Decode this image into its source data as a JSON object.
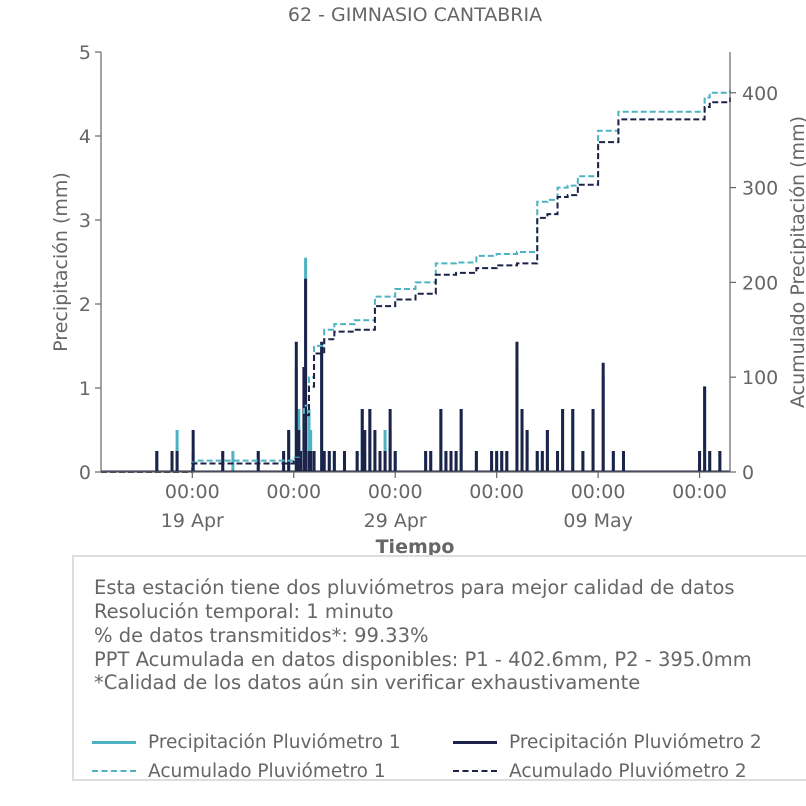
{
  "chart_data": {
    "type": "line",
    "title": "62 - GIMNASIO CANTABRIA",
    "xlabel": "Tiempo",
    "ylabel": "Precipitación (mm)",
    "y2label": "Acumulado Precipitación (mm)",
    "ylim": [
      0,
      5
    ],
    "y2lim": [
      0,
      443
    ],
    "yticks": [
      "0",
      "1",
      "2",
      "3",
      "4",
      "5"
    ],
    "y2ticks": [
      "0",
      "100",
      "200",
      "300",
      "400"
    ],
    "xlim": [
      "2024-04-14 12:00",
      "2024-05-15 12:00"
    ],
    "xticks": [
      {
        "t": "2024-04-19 00:00",
        "time": "00:00",
        "date": "19 Apr"
      },
      {
        "t": "2024-04-24 00:00",
        "time": "00:00",
        "date": ""
      },
      {
        "t": "2024-04-29 00:00",
        "time": "00:00",
        "date": "29 Apr"
      },
      {
        "t": "2024-05-04 00:00",
        "time": "00:00",
        "date": ""
      },
      {
        "t": "2024-05-09 00:00",
        "time": "00:00",
        "date": "09 May"
      },
      {
        "t": "2024-05-14 00:00",
        "time": "00:00",
        "date": ""
      }
    ],
    "legend_placement": "bottom",
    "grid": false,
    "series": [
      {
        "name": "Precipitación Pluviómetro 1",
        "axis": "left",
        "style": "solid",
        "color": "#4db3c2",
        "x": [
          "2024-04-15 09:00",
          "2024-04-17 06:00",
          "2024-04-18 00:00",
          "2024-04-18 06:00",
          "2024-04-19 01:00",
          "2024-04-20 12:00",
          "2024-04-21 00:00",
          "2024-04-21 06:00",
          "2024-04-22 06:00",
          "2024-04-23 12:00",
          "2024-04-23 18:00",
          "2024-04-24 03:00",
          "2024-04-24 06:00",
          "2024-04-24 08:00",
          "2024-04-24 12:00",
          "2024-04-24 14:00",
          "2024-04-24 18:00",
          "2024-04-24 20:00",
          "2024-04-25 00:00",
          "2024-04-25 09:00",
          "2024-04-25 12:00",
          "2024-04-25 18:00",
          "2024-04-26 00:00",
          "2024-04-26 12:00",
          "2024-04-27 03:00",
          "2024-04-27 09:00",
          "2024-04-27 12:00",
          "2024-04-27 18:00",
          "2024-04-28 00:00",
          "2024-04-28 06:00",
          "2024-04-28 12:00",
          "2024-04-28 18:00",
          "2024-04-29 00:00",
          "2024-04-30 12:00",
          "2024-04-30 18:00",
          "2024-05-01 06:00",
          "2024-05-01 12:00",
          "2024-05-01 18:00",
          "2024-05-02 00:00",
          "2024-05-02 06:00",
          "2024-05-03 00:00",
          "2024-05-03 18:00",
          "2024-05-04 00:00",
          "2024-05-04 06:00",
          "2024-05-04 12:00",
          "2024-05-05 00:00",
          "2024-05-05 06:00",
          "2024-05-05 12:00",
          "2024-05-06 00:00",
          "2024-05-06 06:00",
          "2024-05-06 12:00",
          "2024-05-07 00:00",
          "2024-05-07 06:00",
          "2024-05-07 18:00",
          "2024-05-08 06:00",
          "2024-05-08 18:00",
          "2024-05-09 06:00",
          "2024-05-09 18:00",
          "2024-05-10 06:00",
          "2024-05-12 06:00",
          "2024-05-14 00:00",
          "2024-05-14 06:00",
          "2024-05-14 12:00",
          "2024-05-15 00:00"
        ],
        "y": [
          0,
          0.25,
          0.25,
          0.5,
          0.25,
          0.25,
          0.25,
          0,
          0.25,
          0.25,
          0.5,
          1.25,
          0.75,
          0.25,
          0.25,
          2.55,
          0.75,
          0.5,
          0.25,
          1.5,
          0.25,
          0.25,
          0.25,
          0.25,
          0.25,
          0.75,
          0.25,
          0.75,
          0.25,
          0.25,
          0.5,
          0.5,
          0.25,
          0.25,
          0.25,
          0.75,
          0.25,
          0.25,
          0.25,
          0.75,
          0.25,
          0.25,
          0.25,
          0.25,
          0.25,
          1.25,
          0.75,
          0.5,
          0.25,
          0.25,
          0.5,
          0.25,
          0.75,
          0.75,
          0.25,
          0.75,
          1.15,
          0.25,
          0.25,
          0,
          0.25,
          1.0,
          0.25,
          0.25
        ]
      },
      {
        "name": "Precipitación Pluviómetro 2",
        "axis": "left",
        "style": "solid",
        "color": "#1c2248",
        "x": [
          "2024-04-17 06:00",
          "2024-04-18 00:00",
          "2024-04-18 06:00",
          "2024-04-19 01:00",
          "2024-04-20 12:00",
          "2024-04-21 00:00",
          "2024-04-22 06:00",
          "2024-04-23 12:00",
          "2024-04-23 18:00",
          "2024-04-24 03:00",
          "2024-04-24 06:00",
          "2024-04-24 08:00",
          "2024-04-24 12:00",
          "2024-04-24 14:00",
          "2024-04-24 18:00",
          "2024-04-24 20:00",
          "2024-04-25 00:00",
          "2024-04-25 09:00",
          "2024-04-25 12:00",
          "2024-04-25 18:00",
          "2024-04-26 00:00",
          "2024-04-26 12:00",
          "2024-04-27 03:00",
          "2024-04-27 09:00",
          "2024-04-27 12:00",
          "2024-04-27 18:00",
          "2024-04-28 00:00",
          "2024-04-28 06:00",
          "2024-04-28 12:00",
          "2024-04-28 18:00",
          "2024-04-29 00:00",
          "2024-04-30 12:00",
          "2024-04-30 18:00",
          "2024-05-01 06:00",
          "2024-05-01 12:00",
          "2024-05-01 18:00",
          "2024-05-02 00:00",
          "2024-05-02 06:00",
          "2024-05-03 00:00",
          "2024-05-03 18:00",
          "2024-05-04 00:00",
          "2024-05-04 06:00",
          "2024-05-04 12:00",
          "2024-05-05 00:00",
          "2024-05-05 06:00",
          "2024-05-05 12:00",
          "2024-05-06 00:00",
          "2024-05-06 06:00",
          "2024-05-06 12:00",
          "2024-05-07 00:00",
          "2024-05-07 06:00",
          "2024-05-07 18:00",
          "2024-05-08 06:00",
          "2024-05-08 18:00",
          "2024-05-09 06:00",
          "2024-05-09 18:00",
          "2024-05-10 06:00",
          "2024-05-14 00:00",
          "2024-05-14 06:00",
          "2024-05-14 12:00",
          "2024-05-15 00:00"
        ],
        "y": [
          0.25,
          0.25,
          0.25,
          0.5,
          0.25,
          0,
          0.25,
          0.25,
          0.5,
          1.55,
          0.5,
          0.25,
          1.25,
          2.3,
          0.25,
          0.25,
          0.25,
          1.55,
          0.25,
          0.25,
          0.25,
          0.25,
          0.25,
          0.75,
          0.5,
          0.75,
          0.5,
          0.25,
          0.25,
          0.75,
          0.25,
          0.25,
          0.25,
          0.75,
          0.25,
          0.25,
          0.25,
          0.75,
          0.25,
          0.25,
          0.25,
          0.25,
          0.25,
          1.55,
          0.75,
          0.5,
          0.25,
          0.25,
          0.5,
          0.25,
          0.75,
          0.75,
          0.25,
          0.75,
          1.3,
          0.25,
          0.25,
          0.25,
          1.02,
          0.25,
          0.25
        ]
      },
      {
        "name": "Acumulado Pluviómetro 1",
        "axis": "right",
        "style": "dashed",
        "color": "#4db3c2",
        "x": [
          "2024-04-14 12:00",
          "2024-04-19 00:00",
          "2024-04-19 06:00",
          "2024-04-24 00:00",
          "2024-04-24 12:00",
          "2024-04-24 18:00",
          "2024-04-25 00:00",
          "2024-04-25 12:00",
          "2024-04-26 00:00",
          "2024-04-27 00:00",
          "2024-04-28 00:00",
          "2024-04-29 00:00",
          "2024-04-30 00:00",
          "2024-05-01 00:00",
          "2024-05-02 00:00",
          "2024-05-03 00:00",
          "2024-05-04 00:00",
          "2024-05-05 00:00",
          "2024-05-06 00:00",
          "2024-05-06 12:00",
          "2024-05-07 00:00",
          "2024-05-07 12:00",
          "2024-05-08 00:00",
          "2024-05-09 00:00",
          "2024-05-10 00:00",
          "2024-05-14 06:00",
          "2024-05-14 12:00",
          "2024-05-15 12:00"
        ],
        "y": [
          0,
          10,
          12,
          15,
          70,
          100,
          133,
          150,
          156,
          160,
          185,
          193,
          200,
          220,
          221,
          228,
          230,
          232,
          285,
          287,
          300,
          302,
          312,
          360,
          380,
          395,
          400,
          402.6
        ]
      },
      {
        "name": "Acumulado Pluviómetro 2",
        "axis": "right",
        "style": "dashed",
        "color": "#1c2248",
        "x": [
          "2024-04-14 12:00",
          "2024-04-18 00:00",
          "2024-04-19 00:00",
          "2024-04-24 00:00",
          "2024-04-24 12:00",
          "2024-04-24 18:00",
          "2024-04-25 00:00",
          "2024-04-25 12:00",
          "2024-04-26 00:00",
          "2024-04-27 00:00",
          "2024-04-28 00:00",
          "2024-04-29 00:00",
          "2024-04-30 00:00",
          "2024-05-01 00:00",
          "2024-05-02 00:00",
          "2024-05-03 00:00",
          "2024-05-04 00:00",
          "2024-05-05 00:00",
          "2024-05-06 00:00",
          "2024-05-06 12:00",
          "2024-05-07 00:00",
          "2024-05-07 12:00",
          "2024-05-08 00:00",
          "2024-05-09 00:00",
          "2024-05-10 00:00",
          "2024-05-14 06:00",
          "2024-05-14 12:00",
          "2024-05-15 12:00"
        ],
        "y": [
          0,
          0,
          9,
          14,
          60,
          90,
          125,
          140,
          148,
          150,
          175,
          182,
          188,
          208,
          210,
          215,
          218,
          220,
          268,
          272,
          290,
          292,
          303,
          348,
          372,
          385,
          390,
          395.0
        ]
      }
    ]
  },
  "info": {
    "line1": "Esta estación tiene dos pluviómetros para mejor calidad de datos",
    "line2": "Resolución temporal: 1 minuto",
    "line3": "% de datos transmitidos*: 99.33%",
    "line4": "PPT Acumulada en datos disponibles: P1 - 402.6mm, P2 - 395.0mm",
    "line5": "*Calidad de los datos aún sin verificar exhaustivamente"
  },
  "legend": {
    "p1": "Precipitación Pluviómetro 1",
    "p2": "Precipitación Pluviómetro 2",
    "a1": "Acumulado Pluviómetro 1",
    "a2": "Acumulado Pluviómetro 2"
  },
  "colors": {
    "p1": "#4db3c2",
    "p2": "#1c2248",
    "text": "#666666",
    "axis": "#666666"
  }
}
